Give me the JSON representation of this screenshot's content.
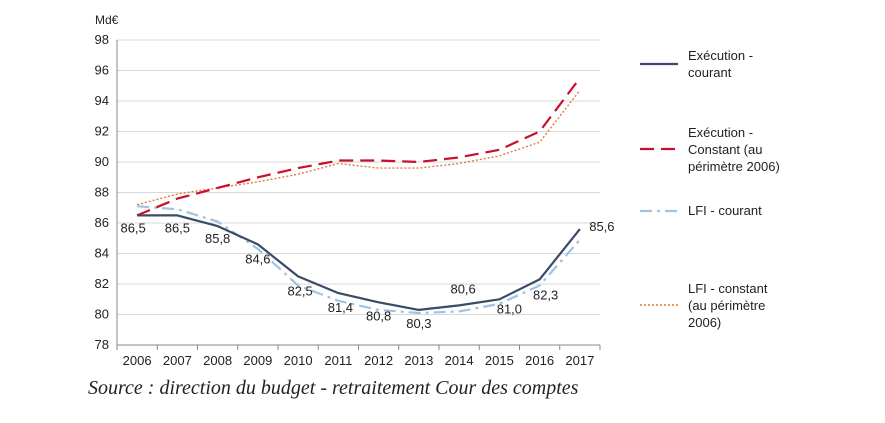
{
  "chart_data": {
    "type": "line",
    "unit": "Md€",
    "x": [
      "2006",
      "2007",
      "2008",
      "2009",
      "2010",
      "2011",
      "2012",
      "2013",
      "2014",
      "2015",
      "2016",
      "2017"
    ],
    "ylim": [
      78,
      98
    ],
    "yticks": [
      "78",
      "80",
      "82",
      "84",
      "86",
      "88",
      "90",
      "92",
      "94",
      "96",
      "98"
    ],
    "grid": true,
    "legend_position": "right",
    "series": [
      {
        "name_lines": [
          "Exécution -",
          "courant"
        ],
        "color": "#3b4a66",
        "style": "solid",
        "values": [
          86.5,
          86.5,
          85.8,
          84.6,
          82.5,
          81.4,
          80.8,
          80.3,
          80.6,
          81.0,
          82.3,
          85.6
        ]
      },
      {
        "name_lines": [
          "Exécution -",
          "Constant (au",
          "périmètre 2006)"
        ],
        "color": "#c8102e",
        "style": "dashed",
        "values": [
          86.5,
          87.6,
          88.3,
          89.0,
          89.6,
          90.1,
          90.1,
          90.0,
          90.3,
          90.8,
          92.0,
          95.5
        ]
      },
      {
        "name_lines": [
          "LFI - courant"
        ],
        "color": "#9dc3e6",
        "style": "dashdot",
        "values": [
          87.1,
          86.9,
          86.1,
          84.3,
          81.9,
          80.9,
          80.3,
          80.1,
          80.2,
          80.7,
          81.9,
          84.9
        ]
      },
      {
        "name_lines": [
          "LFI - constant",
          "(au périmètre",
          "2006)"
        ],
        "color": "#e07b39",
        "style": "dotted",
        "values": [
          87.2,
          87.9,
          88.3,
          88.7,
          89.2,
          89.9,
          89.6,
          89.6,
          89.9,
          90.4,
          91.3,
          94.7
        ]
      }
    ],
    "data_labels": [
      "86,5",
      "86,5",
      "85,8",
      "84,6",
      "82,5",
      "81,4",
      "80,8",
      "80,3",
      "80,6",
      "81,0",
      "82,3",
      "85,6"
    ]
  },
  "source": "Source : direction du budget - retraitement Cour des comptes"
}
